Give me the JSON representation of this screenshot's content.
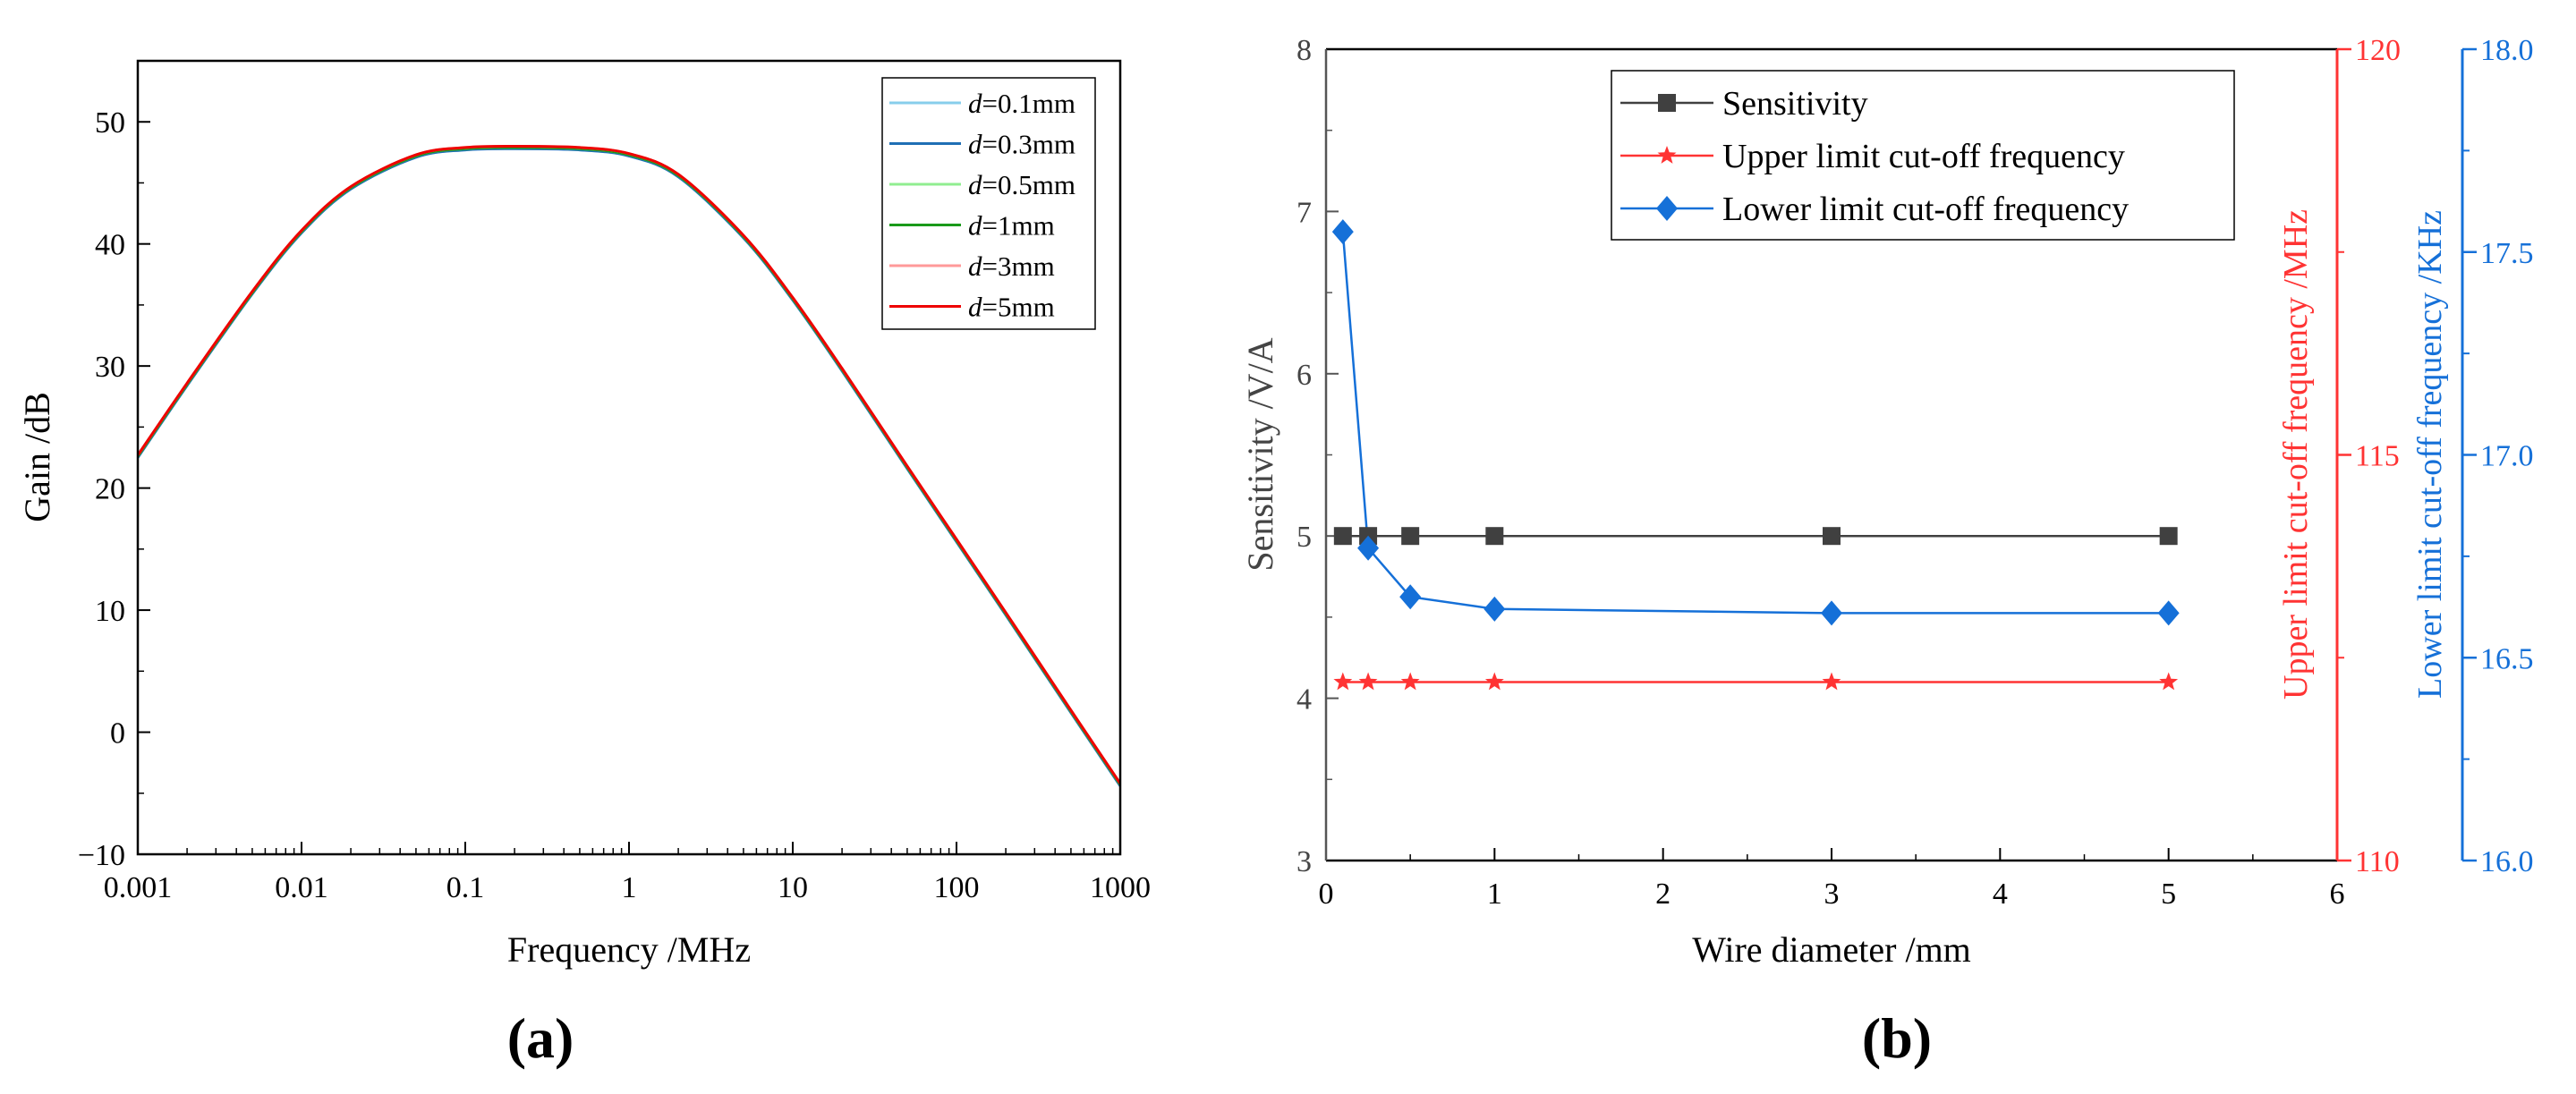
{
  "chart_data": [
    {
      "type": "line",
      "panel_label": "(a)",
      "xlabel": "Frequency /MHz",
      "ylabel": "Gain /dB",
      "xscale": "log",
      "xlim": [
        0.001,
        1000
      ],
      "ylim": [
        -10,
        55
      ],
      "xticks": [
        0.001,
        0.01,
        0.1,
        1,
        10,
        100,
        1000
      ],
      "xtick_labels": [
        "0.001",
        "0.01",
        "0.1",
        "1",
        "10",
        "100",
        "1000"
      ],
      "yticks": [
        -10,
        0,
        10,
        20,
        30,
        40,
        50
      ],
      "ytick_labels": [
        "−10",
        "0",
        "10",
        "20",
        "30",
        "40",
        "50"
      ],
      "legend_position": "top-right",
      "series": [
        {
          "name": "d=0.1mm",
          "var": "d",
          "value": "=0.1mm",
          "color": "#87ceeb",
          "x": [
            0.001,
            0.002,
            0.005,
            0.01,
            0.02,
            0.05,
            0.1,
            0.2,
            0.5,
            1,
            2,
            5,
            10,
            20,
            50,
            100,
            200,
            500,
            1000
          ],
          "y": [
            22.5,
            28.4,
            35.9,
            40.9,
            44.5,
            47.1,
            47.7,
            47.8,
            47.7,
            47.2,
            45.5,
            40.5,
            35.4,
            29.6,
            21.6,
            15.6,
            9.6,
            1.6,
            -4.4
          ]
        },
        {
          "name": "d=0.3mm",
          "var": "d",
          "value": "=0.3mm",
          "color": "#1f6fb4",
          "x": [
            0.001,
            0.002,
            0.005,
            0.01,
            0.02,
            0.05,
            0.1,
            0.2,
            0.5,
            1,
            2,
            5,
            10,
            20,
            50,
            100,
            200,
            500,
            1000
          ],
          "y": [
            22.5,
            28.4,
            35.9,
            40.9,
            44.5,
            47.1,
            47.7,
            47.8,
            47.7,
            47.2,
            45.5,
            40.5,
            35.4,
            29.6,
            21.6,
            15.6,
            9.6,
            1.6,
            -4.4
          ]
        },
        {
          "name": "d=0.5mm",
          "var": "d",
          "value": "=0.5mm",
          "color": "#90ee90",
          "x": [
            0.001,
            0.002,
            0.005,
            0.01,
            0.02,
            0.05,
            0.1,
            0.2,
            0.5,
            1,
            2,
            5,
            10,
            20,
            50,
            100,
            200,
            500,
            1000
          ],
          "y": [
            22.6,
            28.5,
            36.0,
            41.0,
            44.6,
            47.2,
            47.8,
            47.9,
            47.8,
            47.3,
            45.6,
            40.6,
            35.5,
            29.7,
            21.7,
            15.7,
            9.7,
            1.7,
            -4.3
          ]
        },
        {
          "name": "d=1mm",
          "var": "d",
          "value": "=1mm",
          "color": "#1a9a1a",
          "x": [
            0.001,
            0.002,
            0.005,
            0.01,
            0.02,
            0.05,
            0.1,
            0.2,
            0.5,
            1,
            2,
            5,
            10,
            20,
            50,
            100,
            200,
            500,
            1000
          ],
          "y": [
            22.6,
            28.5,
            36.0,
            41.0,
            44.6,
            47.2,
            47.8,
            47.9,
            47.8,
            47.3,
            45.6,
            40.6,
            35.5,
            29.7,
            21.7,
            15.7,
            9.7,
            1.7,
            -4.3
          ]
        },
        {
          "name": "d=3mm",
          "var": "d",
          "value": "=3mm",
          "color": "#ff9999",
          "x": [
            0.001,
            0.002,
            0.005,
            0.01,
            0.02,
            0.05,
            0.1,
            0.2,
            0.5,
            1,
            2,
            5,
            10,
            20,
            50,
            100,
            200,
            500,
            1000
          ],
          "y": [
            22.7,
            28.6,
            36.1,
            41.1,
            44.7,
            47.3,
            47.9,
            48.0,
            47.9,
            47.4,
            45.7,
            40.7,
            35.6,
            29.8,
            21.8,
            15.8,
            9.8,
            1.8,
            -4.2
          ]
        },
        {
          "name": "d=5mm",
          "var": "d",
          "value": "=5mm",
          "color": "#ee0000",
          "x": [
            0.001,
            0.002,
            0.005,
            0.01,
            0.02,
            0.05,
            0.1,
            0.2,
            0.5,
            1,
            2,
            5,
            10,
            20,
            50,
            100,
            200,
            500,
            1000
          ],
          "y": [
            22.7,
            28.6,
            36.1,
            41.1,
            44.7,
            47.3,
            47.9,
            48.0,
            47.9,
            47.4,
            45.7,
            40.7,
            35.6,
            29.8,
            21.8,
            15.8,
            9.8,
            1.8,
            -4.2
          ]
        }
      ]
    },
    {
      "type": "line",
      "panel_label": "(b)",
      "xlabel": "Wire diameter /mm",
      "xlim": [
        0,
        6
      ],
      "xticks": [
        0,
        1,
        2,
        3,
        4,
        5,
        6
      ],
      "xtick_labels": [
        "0",
        "1",
        "2",
        "3",
        "4",
        "5",
        "6"
      ],
      "legend_position": "top-center",
      "axes": [
        {
          "id": "left",
          "label": "Sensitivity /V/A",
          "color": "#444444",
          "lim": [
            3,
            8
          ],
          "ticks": [
            3,
            4,
            5,
            6,
            7,
            8
          ],
          "tick_labels": [
            "3",
            "4",
            "5",
            "6",
            "7",
            "8"
          ]
        },
        {
          "id": "right1",
          "label": "Upper limit cut-off frequency /MHz",
          "color": "#ff3333",
          "lim": [
            110,
            120
          ],
          "ticks": [
            110,
            115,
            120
          ],
          "tick_labels": [
            "110",
            "115",
            "120"
          ]
        },
        {
          "id": "right2",
          "label": "Lower limit cut-off frequency /KHz",
          "color": "#1570d8",
          "lim": [
            16.0,
            18.0
          ],
          "ticks": [
            16.0,
            16.5,
            17.0,
            17.5,
            18.0
          ],
          "tick_labels": [
            "16.0",
            "16.5",
            "17.0",
            "17.5",
            "18.0"
          ]
        }
      ],
      "series": [
        {
          "name": "Sensitivity",
          "axis": "left",
          "color": "#404040",
          "marker": "square",
          "x": [
            0.1,
            0.25,
            0.5,
            1,
            3,
            5
          ],
          "y": [
            5.0,
            5.0,
            5.0,
            5.0,
            5.0,
            5.0
          ]
        },
        {
          "name": "Upper limit cut-off frequency",
          "axis": "right1",
          "color": "#ff3333",
          "marker": "star",
          "x": [
            0.1,
            0.25,
            0.5,
            1,
            3,
            5
          ],
          "y": [
            112.2,
            112.2,
            112.2,
            112.2,
            112.2,
            112.2
          ]
        },
        {
          "name": "Lower limit cut-off frequency",
          "axis": "right2",
          "color": "#1570d8",
          "marker": "diamond",
          "x": [
            0.1,
            0.25,
            0.5,
            1,
            3,
            5
          ],
          "y": [
            17.55,
            16.77,
            16.65,
            16.62,
            16.61,
            16.61
          ]
        }
      ]
    }
  ]
}
